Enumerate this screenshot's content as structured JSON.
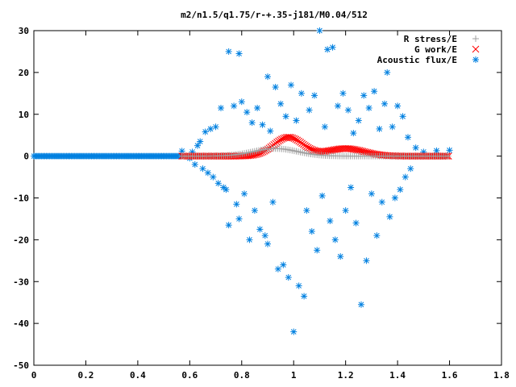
{
  "chart_data": {
    "type": "scatter",
    "title": "m2/n1.5/q1.75/r-+.35-j181/M0.04/512",
    "xlim": [
      0,
      1.8
    ],
    "ylim": [
      -50,
      30
    ],
    "x_ticks": [
      "0",
      "0.2",
      "0.4",
      "0.6",
      "0.8",
      "1",
      "1.2",
      "1.4",
      "1.6",
      "1.8"
    ],
    "y_ticks": [
      "30",
      "20",
      "10",
      "0",
      "-10",
      "-20",
      "-30",
      "-40",
      "-50"
    ],
    "grid": false,
    "legend_position": "top-right",
    "series": [
      {
        "name": "R stress/E",
        "marker": "plus",
        "color": "#a0a0a0",
        "curve": {
          "x_start": 0.57,
          "x_end": 1.6,
          "peak_x": 0.93,
          "peak_y": 1.8,
          "width": 0.12
        }
      },
      {
        "name": "G work/E",
        "marker": "cross",
        "color": "#ff0000",
        "curve": {
          "x_start": 0.57,
          "x_end": 1.6,
          "peak_x": 0.98,
          "peak_y": 4.5,
          "width": 0.08,
          "secondary_peak_x": 1.2,
          "secondary_peak_y": 1.8
        }
      },
      {
        "name": "Acoustic flux/E",
        "marker": "star",
        "color": "#0080e0",
        "baseline": {
          "x_start": 0.0,
          "x_end": 0.57,
          "y": 0
        },
        "points": [
          [
            0.57,
            1.2
          ],
          [
            0.6,
            -0.5
          ],
          [
            0.61,
            1.0
          ],
          [
            0.62,
            -2.0
          ],
          [
            0.63,
            2.5
          ],
          [
            0.64,
            3.5
          ],
          [
            0.65,
            -3.0
          ],
          [
            0.66,
            5.8
          ],
          [
            0.67,
            -4.0
          ],
          [
            0.68,
            6.5
          ],
          [
            0.69,
            -5.0
          ],
          [
            0.7,
            7.0
          ],
          [
            0.71,
            -6.5
          ],
          [
            0.72,
            11.5
          ],
          [
            0.73,
            -7.5
          ],
          [
            0.74,
            -8.0
          ],
          [
            0.75,
            25.0
          ],
          [
            0.75,
            -16.5
          ],
          [
            0.77,
            12.0
          ],
          [
            0.78,
            -11.5
          ],
          [
            0.79,
            24.5
          ],
          [
            0.79,
            -15.0
          ],
          [
            0.8,
            13.0
          ],
          [
            0.81,
            -9.0
          ],
          [
            0.82,
            10.5
          ],
          [
            0.83,
            -20.0
          ],
          [
            0.84,
            8.0
          ],
          [
            0.85,
            -13.0
          ],
          [
            0.86,
            11.5
          ],
          [
            0.87,
            -17.5
          ],
          [
            0.88,
            7.5
          ],
          [
            0.89,
            -19.0
          ],
          [
            0.9,
            19.0
          ],
          [
            0.9,
            -21.0
          ],
          [
            0.91,
            6.0
          ],
          [
            0.92,
            -11.0
          ],
          [
            0.93,
            16.5
          ],
          [
            0.94,
            -27.0
          ],
          [
            0.95,
            12.5
          ],
          [
            0.96,
            -26.0
          ],
          [
            0.97,
            9.5
          ],
          [
            0.98,
            -29.0
          ],
          [
            0.99,
            17.0
          ],
          [
            1.0,
            -42.0
          ],
          [
            1.01,
            8.5
          ],
          [
            1.02,
            -31.0
          ],
          [
            1.03,
            15.0
          ],
          [
            1.04,
            -33.5
          ],
          [
            1.05,
            -13.0
          ],
          [
            1.06,
            11.0
          ],
          [
            1.07,
            -18.0
          ],
          [
            1.08,
            14.5
          ],
          [
            1.09,
            -22.5
          ],
          [
            1.1,
            30.0
          ],
          [
            1.11,
            -9.5
          ],
          [
            1.12,
            7.0
          ],
          [
            1.13,
            25.5
          ],
          [
            1.14,
            -15.5
          ],
          [
            1.15,
            26.0
          ],
          [
            1.16,
            -20.0
          ],
          [
            1.17,
            12.0
          ],
          [
            1.18,
            -24.0
          ],
          [
            1.19,
            15.0
          ],
          [
            1.2,
            -13.0
          ],
          [
            1.21,
            11.0
          ],
          [
            1.22,
            -7.5
          ],
          [
            1.23,
            5.5
          ],
          [
            1.24,
            -16.0
          ],
          [
            1.25,
            8.5
          ],
          [
            1.26,
            -35.5
          ],
          [
            1.27,
            14.5
          ],
          [
            1.28,
            -25.0
          ],
          [
            1.29,
            11.5
          ],
          [
            1.3,
            -9.0
          ],
          [
            1.31,
            15.5
          ],
          [
            1.32,
            -19.0
          ],
          [
            1.33,
            6.5
          ],
          [
            1.34,
            -11.0
          ],
          [
            1.35,
            12.5
          ],
          [
            1.36,
            20.0
          ],
          [
            1.37,
            -14.5
          ],
          [
            1.38,
            7.0
          ],
          [
            1.39,
            -10.0
          ],
          [
            1.4,
            12.0
          ],
          [
            1.41,
            -8.0
          ],
          [
            1.42,
            9.5
          ],
          [
            1.43,
            -5.0
          ],
          [
            1.44,
            4.5
          ],
          [
            1.45,
            -3.0
          ],
          [
            1.47,
            2.0
          ],
          [
            1.5,
            1.0
          ],
          [
            1.55,
            1.3
          ],
          [
            1.6,
            1.4
          ]
        ]
      }
    ]
  }
}
